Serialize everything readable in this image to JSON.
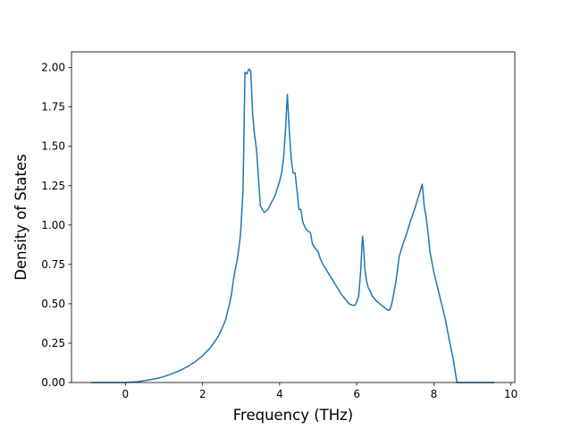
{
  "chart_data": {
    "type": "line",
    "title": "",
    "xlabel": "Frequency (THz)",
    "ylabel": "Density of States",
    "xlim": [
      -1.4,
      10.1
    ],
    "ylim": [
      0.0,
      2.1
    ],
    "xticks": [
      0,
      2,
      4,
      6,
      8,
      10
    ],
    "xtick_labels": [
      "0",
      "2",
      "4",
      "6",
      "8",
      "10"
    ],
    "yticks": [
      0.0,
      0.25,
      0.5,
      0.75,
      1.0,
      1.25,
      1.5,
      1.75,
      2.0
    ],
    "ytick_labels": [
      "0.00",
      "0.25",
      "0.50",
      "0.75",
      "1.00",
      "1.25",
      "1.50",
      "1.75",
      "2.00"
    ],
    "grid": false,
    "legend": "none",
    "line_color": "#1f77b4",
    "series": [
      {
        "x": [
          -0.88,
          -0.5,
          0.0,
          0.3,
          0.5,
          0.8,
          1.0,
          1.2,
          1.4,
          1.6,
          1.8,
          2.0,
          2.2,
          2.4,
          2.5,
          2.6,
          2.7,
          2.75,
          2.8,
          2.85,
          2.9,
          2.93,
          2.95,
          2.98,
          3.0,
          3.05,
          3.1,
          3.15,
          3.2,
          3.25,
          3.3,
          3.35,
          3.4,
          3.45,
          3.5,
          3.6,
          3.7,
          3.8,
          3.85,
          3.9,
          4.0,
          4.05,
          4.1,
          4.15,
          4.2,
          4.25,
          4.3,
          4.35,
          4.4,
          4.45,
          4.5,
          4.55,
          4.6,
          4.65,
          4.7,
          4.8,
          4.85,
          4.9,
          5.0,
          5.05,
          5.1,
          5.2,
          5.3,
          5.4,
          5.5,
          5.6,
          5.7,
          5.8,
          5.9,
          5.95,
          6.0,
          6.05,
          6.1,
          6.15,
          6.18,
          6.21,
          6.25,
          6.3,
          6.35,
          6.4,
          6.5,
          6.6,
          6.7,
          6.8,
          6.85,
          6.9,
          6.95,
          7.0,
          7.05,
          7.1,
          7.15,
          7.2,
          7.3,
          7.4,
          7.5,
          7.6,
          7.7,
          7.75,
          7.8,
          7.85,
          7.9,
          8.0,
          8.1,
          8.2,
          8.3,
          8.4,
          8.5,
          8.6,
          8.65,
          8.7,
          8.8,
          9.0,
          9.2,
          9.4,
          9.55
        ],
        "values": [
          0.0,
          0.0,
          0.0,
          0.005,
          0.012,
          0.025,
          0.038,
          0.055,
          0.075,
          0.1,
          0.13,
          0.17,
          0.22,
          0.29,
          0.34,
          0.4,
          0.5,
          0.56,
          0.65,
          0.72,
          0.78,
          0.83,
          0.87,
          0.93,
          1.0,
          1.22,
          1.97,
          1.96,
          1.99,
          1.98,
          1.7,
          1.57,
          1.48,
          1.3,
          1.12,
          1.08,
          1.1,
          1.15,
          1.17,
          1.2,
          1.28,
          1.33,
          1.42,
          1.6,
          1.83,
          1.6,
          1.42,
          1.33,
          1.33,
          1.22,
          1.1,
          1.1,
          1.02,
          0.99,
          0.97,
          0.95,
          0.88,
          0.86,
          0.83,
          0.79,
          0.76,
          0.72,
          0.68,
          0.64,
          0.6,
          0.56,
          0.53,
          0.5,
          0.49,
          0.49,
          0.51,
          0.55,
          0.7,
          0.93,
          0.85,
          0.72,
          0.65,
          0.6,
          0.58,
          0.55,
          0.52,
          0.5,
          0.48,
          0.46,
          0.46,
          0.49,
          0.55,
          0.62,
          0.7,
          0.8,
          0.84,
          0.88,
          0.95,
          1.03,
          1.1,
          1.18,
          1.26,
          1.12,
          1.05,
          0.95,
          0.83,
          0.7,
          0.6,
          0.5,
          0.4,
          0.27,
          0.15,
          0.0,
          0.0,
          0.0,
          0.0,
          0.0,
          0.0,
          0.0,
          0.0
        ]
      }
    ]
  }
}
